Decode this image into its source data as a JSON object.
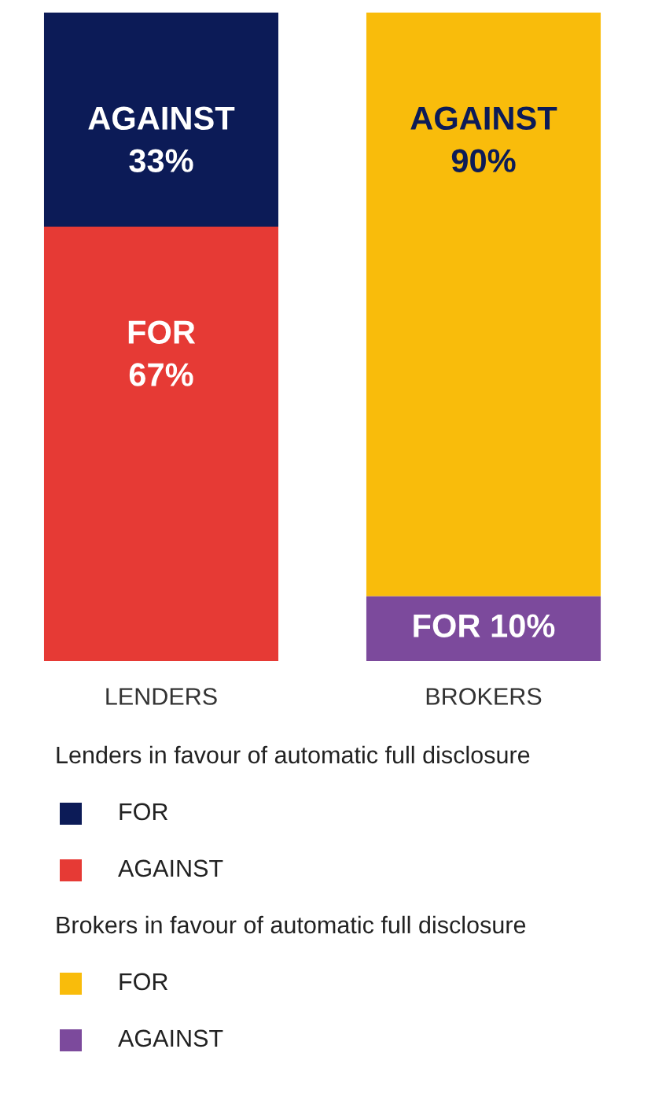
{
  "chart_data": {
    "type": "bar",
    "stacked": true,
    "categories": [
      "LENDERS",
      "BROKERS"
    ],
    "series": [
      {
        "name": "AGAINST",
        "color": "#e63a35",
        "values": [
          67,
          null
        ],
        "value_labels": [
          "FOR\n67%",
          null
        ]
      },
      {
        "name": "FOR",
        "color": "#0c1b57",
        "values": [
          33,
          null
        ],
        "value_labels": [
          "AGAINST\n33%",
          null
        ]
      },
      {
        "name": "AGAINST",
        "color": "#7c4a9c",
        "values": [
          null,
          10
        ],
        "value_labels": [
          null,
          "FOR 10%"
        ]
      },
      {
        "name": "FOR",
        "color": "#f9bc0b",
        "values": [
          null,
          90
        ],
        "value_labels": [
          null,
          "AGAINST\n90%"
        ]
      }
    ],
    "legend_title": [
      "Lenders in favour of automatic full disclosure",
      "Brokers in favour of automatic full disclosure"
    ],
    "legend": "bottom",
    "tick_labels": "x",
    "grid": false
  }
}
